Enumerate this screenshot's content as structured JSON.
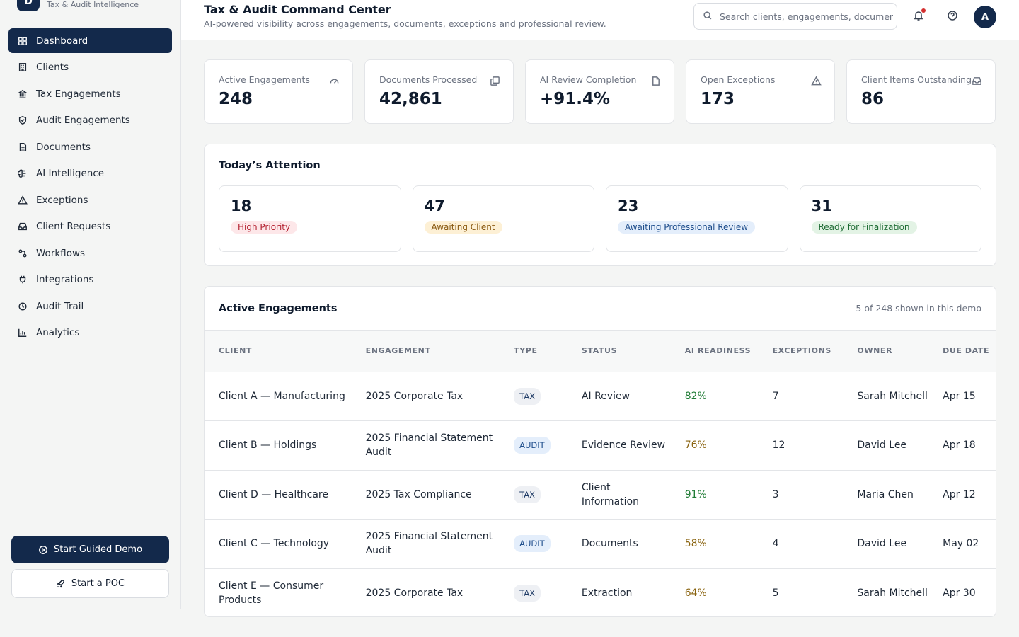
{
  "brand": {
    "logo_letter": "D",
    "subtitle": "Tax & Audit Intelligence"
  },
  "sidebar": {
    "items": [
      {
        "label": "Dashboard",
        "icon": "grid-icon",
        "active": true
      },
      {
        "label": "Clients",
        "icon": "building-icon"
      },
      {
        "label": "Tax Engagements",
        "icon": "landmark-icon"
      },
      {
        "label": "Audit Engagements",
        "icon": "shield-check-icon"
      },
      {
        "label": "Documents",
        "icon": "document-icon"
      },
      {
        "label": "AI Intelligence",
        "icon": "brain-icon"
      },
      {
        "label": "Exceptions",
        "icon": "warning-icon"
      },
      {
        "label": "Client Requests",
        "icon": "inbox-icon"
      },
      {
        "label": "Workflows",
        "icon": "workflow-icon"
      },
      {
        "label": "Integrations",
        "icon": "plug-icon"
      },
      {
        "label": "Audit Trail",
        "icon": "history-icon"
      },
      {
        "label": "Analytics",
        "icon": "bar-chart-icon"
      }
    ],
    "guided_demo_label": "Start Guided Demo",
    "poc_label": "Start a POC"
  },
  "header": {
    "title": "Tax & Audit Command Center",
    "subtitle": "AI-powered visibility across engagements, documents, exceptions and professional review.",
    "search_placeholder": "Search clients, engagements, documents...",
    "avatar_initial": "A"
  },
  "kpis": [
    {
      "label": "Active Engagements",
      "value": "248",
      "icon": "gauge-icon"
    },
    {
      "label": "Documents Processed",
      "value": "42,861",
      "icon": "copy-icon"
    },
    {
      "label": "AI Review Completion",
      "value": "+91.4%",
      "icon": "file-check-icon"
    },
    {
      "label": "Open Exceptions",
      "value": "173",
      "icon": "warning-icon"
    },
    {
      "label": "Client Items Outstanding",
      "value": "86",
      "icon": "inbox-icon"
    }
  ],
  "attention": {
    "title": "Today’s Attention",
    "cards": [
      {
        "count": "18",
        "label": "High Priority",
        "tone": "red"
      },
      {
        "count": "47",
        "label": "Awaiting Client",
        "tone": "amber"
      },
      {
        "count": "23",
        "label": "Awaiting Professional Review",
        "tone": "blue"
      },
      {
        "count": "31",
        "label": "Ready for Finalization",
        "tone": "green"
      }
    ]
  },
  "engagements": {
    "title": "Active Engagements",
    "note": "5 of 248 shown in this demo",
    "columns": [
      "CLIENT",
      "ENGAGEMENT",
      "TYPE",
      "STATUS",
      "AI READINESS",
      "EXCEPTIONS",
      "OWNER",
      "DUE DATE"
    ],
    "rows": [
      {
        "client": "Client A — Manufacturing",
        "engagement": "2025 Corporate Tax",
        "type": "TAX",
        "status": "AI Review",
        "ai": "82%",
        "exceptions": "7",
        "owner": "Sarah Mitchell",
        "due": "Apr 15"
      },
      {
        "client": "Client B — Holdings",
        "engagement": "2025 Financial Statement Audit",
        "type": "AUDIT",
        "status": "Evidence Review",
        "ai": "76%",
        "exceptions": "12",
        "owner": "David Lee",
        "due": "Apr 18"
      },
      {
        "client": "Client D — Healthcare",
        "engagement": "2025 Tax Compliance",
        "type": "TAX",
        "status": "Client Information",
        "ai": "91%",
        "exceptions": "3",
        "owner": "Maria Chen",
        "due": "Apr 12"
      },
      {
        "client": "Client C — Technology",
        "engagement": "2025 Financial Statement Audit",
        "type": "AUDIT",
        "status": "Documents",
        "ai": "58%",
        "exceptions": "4",
        "owner": "David Lee",
        "due": "May 02"
      },
      {
        "client": "Client E — Consumer Products",
        "engagement": "2025 Corporate Tax",
        "type": "TAX",
        "status": "Extraction",
        "ai": "64%",
        "exceptions": "5",
        "owner": "Sarah Mitchell",
        "due": "Apr 30"
      }
    ]
  },
  "colors": {
    "navy": "#13294b",
    "ai_good": "#1e7b34",
    "ai_mid": "#8a6410",
    "notif": "#d32f2f"
  }
}
